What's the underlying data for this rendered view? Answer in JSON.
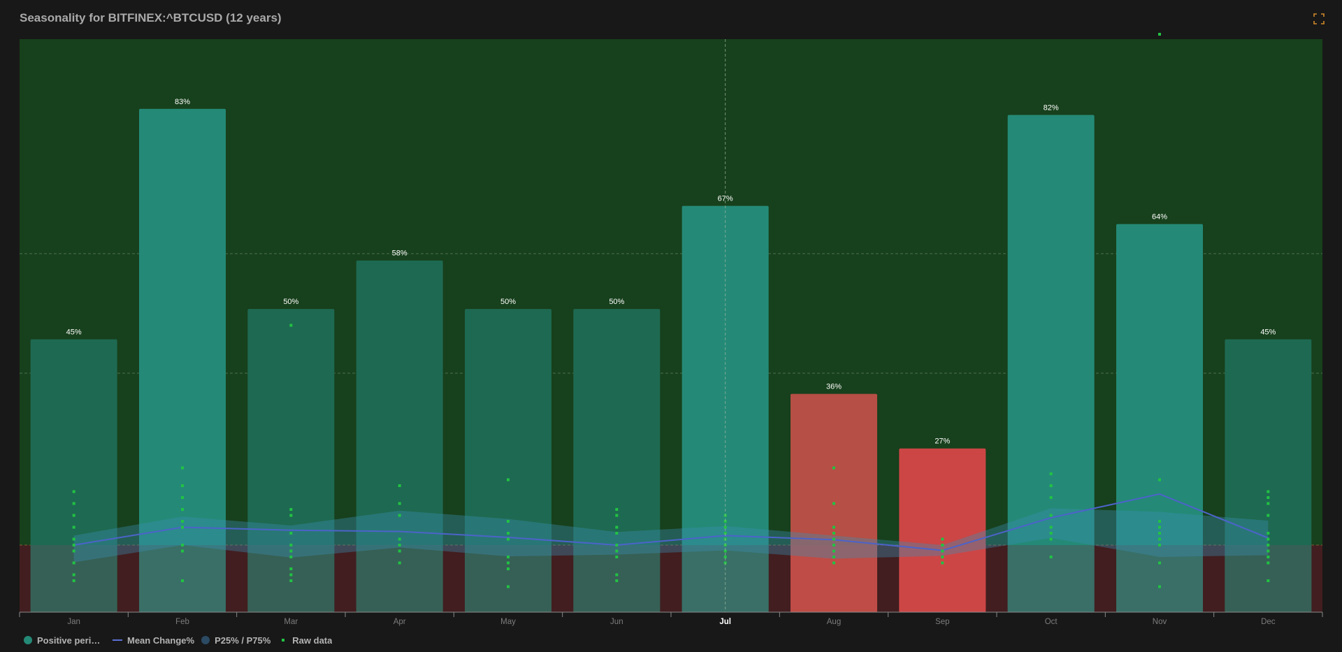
{
  "header": {
    "title": "Seasonality for BITFINEX:^BTCUSD (12 years)",
    "expand_icon": "fullscreen-icon"
  },
  "colors": {
    "background": "#181818",
    "positive_zone": "#17401c",
    "negative_zone": "#421e20",
    "bar_strong": "#248a77",
    "bar_weak": "#1e6951",
    "bar_negative": "#b64f45",
    "bar_negative_low": "#cb4645",
    "band": "#3a8fb3",
    "mean_line": "#4c63c9",
    "raw_dot": "#22c244",
    "label": "#ffffff",
    "axis_label": "#7d7d7d",
    "axis_highlight": "#ffffff"
  },
  "chart_data": {
    "type": "bar",
    "title": "Seasonality for BITFINEX:^BTCUSD (12 years)",
    "categories": [
      "Jan",
      "Feb",
      "Mar",
      "Apr",
      "May",
      "Jun",
      "Jul",
      "Aug",
      "Sep",
      "Oct",
      "Nov",
      "Dec"
    ],
    "highlighted_category": "Jul",
    "grid": true,
    "legend_position": "bottom-left",
    "series": [
      {
        "name": "Positive perio…",
        "kind": "bar",
        "unit": "%",
        "values": [
          45,
          83,
          50,
          58,
          50,
          50,
          67,
          36,
          27,
          82,
          64,
          45
        ],
        "labels": [
          "45%",
          "83%",
          "50%",
          "58%",
          "50%",
          "50%",
          "67%",
          "36%",
          "27%",
          "82%",
          "64%",
          "45%"
        ]
      },
      {
        "name": "Mean Change%",
        "kind": "line",
        "values": [
          0,
          3,
          2.5,
          2.3,
          1.3,
          0,
          1.6,
          0.9,
          -0.9,
          4.6,
          8.6,
          1.2
        ]
      },
      {
        "name": "P25% / P75%",
        "kind": "band",
        "p75": [
          1.6,
          4.8,
          3.3,
          5.8,
          4.4,
          2.2,
          3.2,
          1.6,
          0,
          6.2,
          5.6,
          4.1
        ],
        "p25": [
          -2.9,
          0,
          -2.1,
          -0.4,
          -1.9,
          -1.6,
          -0.9,
          -2.3,
          -1.8,
          1.2,
          -2.0,
          -1.7
        ]
      },
      {
        "name": "Raw data",
        "kind": "scatter",
        "points": [
          [
            9,
            7,
            5,
            3,
            1,
            0,
            -1,
            -3,
            -5,
            -6
          ],
          [
            13,
            10,
            8,
            6,
            4,
            3,
            0,
            -1,
            -6
          ],
          [
            37,
            6,
            5,
            2,
            0,
            -1,
            -2,
            -4,
            -5,
            -6
          ],
          [
            10,
            7,
            5,
            1,
            0,
            -1,
            -3
          ],
          [
            11,
            4,
            2,
            1,
            -2,
            -3,
            -4,
            -7
          ],
          [
            6,
            5,
            3,
            2,
            0,
            -1,
            -2,
            -5,
            -6
          ],
          [
            5,
            4,
            3,
            2,
            1,
            0,
            -1,
            -2,
            -3
          ],
          [
            13,
            7,
            3,
            2,
            1,
            0,
            -1,
            -2,
            -3
          ],
          [
            1,
            0,
            0,
            -1,
            -1,
            -2,
            -3
          ],
          [
            12,
            10,
            8,
            5,
            3,
            2,
            1,
            -2
          ],
          [
            86,
            11,
            4,
            3,
            2,
            1,
            0,
            -3,
            -7
          ],
          [
            9,
            8,
            7,
            5,
            2,
            1,
            0,
            -1,
            -2,
            -3,
            -6
          ]
        ]
      }
    ]
  },
  "legend": {
    "items": [
      {
        "label": "Positive perio…",
        "icon": "circle",
        "color": "#248a77"
      },
      {
        "label": "Mean Change%",
        "icon": "line",
        "color": "#4c63c9"
      },
      {
        "label": "P25% / P75%",
        "icon": "circle",
        "color": "#2b4a63"
      },
      {
        "label": "Raw data",
        "icon": "dot",
        "color": "#22c244"
      }
    ]
  }
}
